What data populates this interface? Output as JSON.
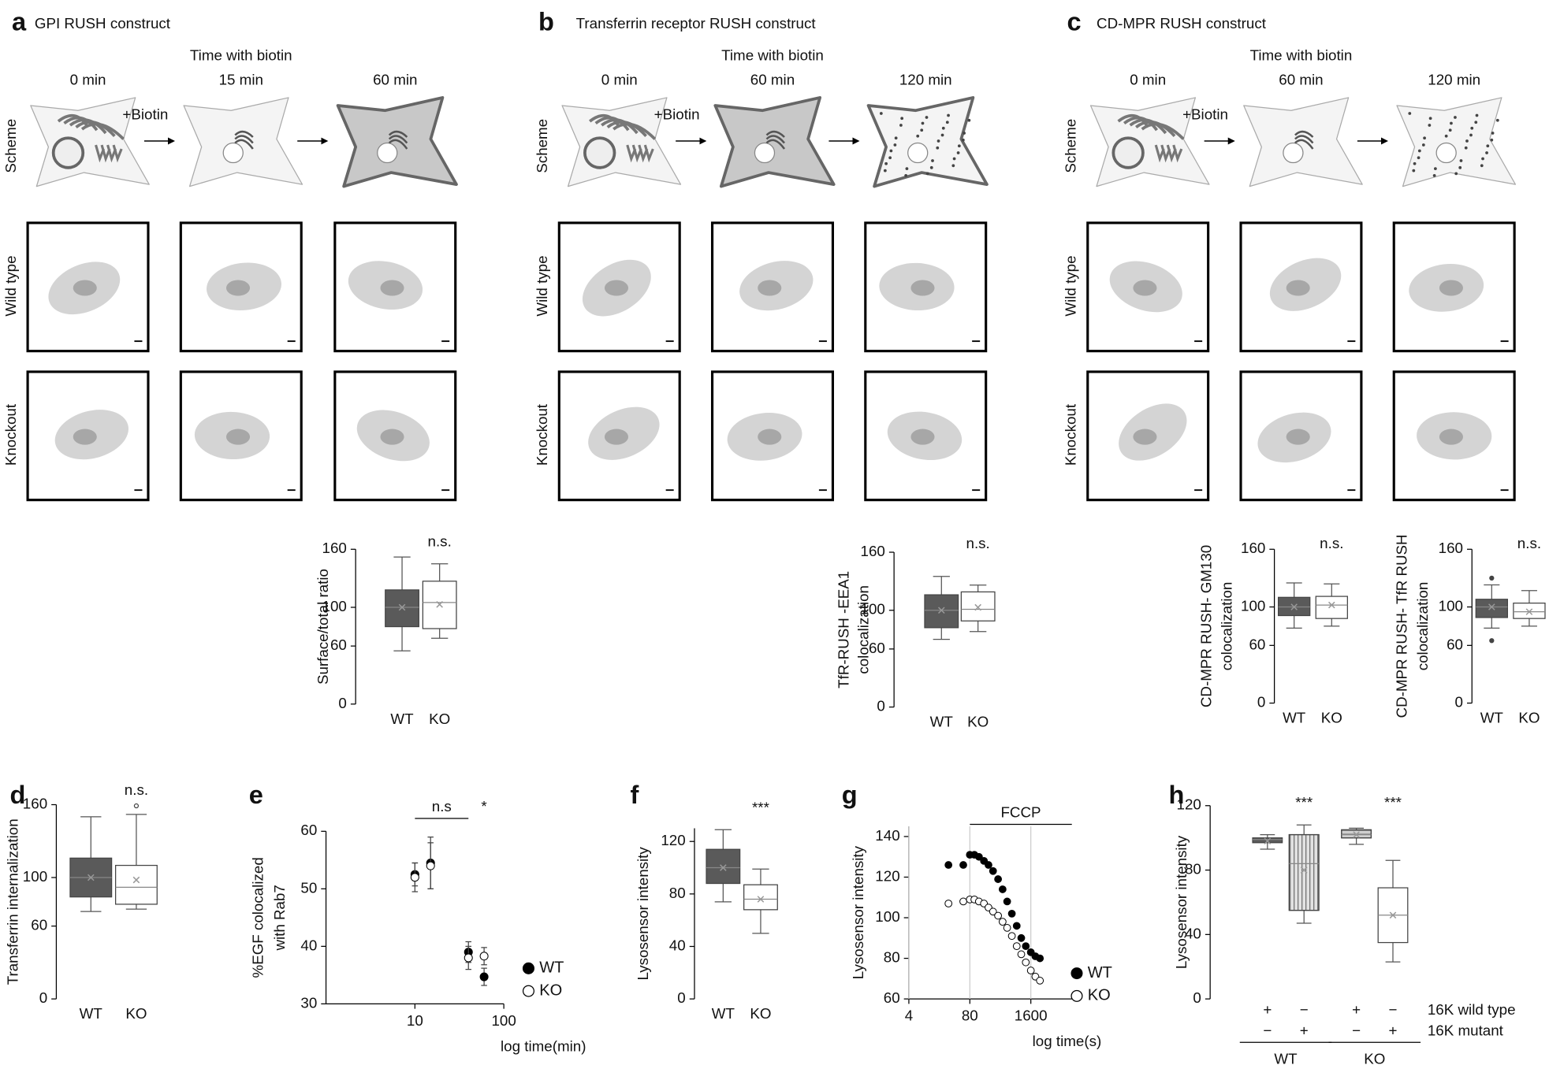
{
  "panels": [
    {
      "letter": "a",
      "title": "GPI RUSH construct",
      "time_header": "Time with biotin",
      "times": [
        "0 min",
        "15 min",
        "60 min"
      ],
      "treatment": "+Biotin",
      "row_labels": [
        "Scheme",
        "Wild type",
        "Knockout"
      ]
    },
    {
      "letter": "b",
      "title": "Transferrin receptor RUSH construct",
      "time_header": "Time with biotin",
      "times": [
        "0 min",
        "60 min",
        "120 min"
      ],
      "treatment": "+Biotin",
      "row_labels": [
        "Scheme",
        "Wild type",
        "Knockout"
      ]
    },
    {
      "letter": "c",
      "title": "CD-MPR RUSH construct",
      "time_header": "Time with biotin",
      "times": [
        "0 min",
        "60 min",
        "120 min"
      ],
      "treatment": "+Biotin",
      "row_labels": [
        "Scheme",
        "Wild type",
        "Knockout"
      ]
    }
  ],
  "chart_data": [
    {
      "type": "box",
      "ylabel": [
        "Surface/total ratio"
      ],
      "categories": [
        "WT",
        "KO"
      ],
      "ylim": [
        0,
        160
      ],
      "yticks": [
        0,
        60,
        100,
        160
      ],
      "boxes": [
        {
          "low": 55,
          "q1": 80,
          "median": 100,
          "q3": 118,
          "high": 152,
          "mean": 100,
          "fill": "#5a5a5a"
        },
        {
          "low": 68,
          "q1": 78,
          "median": 105,
          "q3": 127,
          "high": 145,
          "mean": 103,
          "fill": "#ffffff",
          "annotation": "n.s."
        }
      ]
    },
    {
      "type": "box",
      "ylabel": [
        "TfR-RUSH -EEA1",
        "colocalization"
      ],
      "categories": [
        "WT",
        "KO"
      ],
      "ylim": [
        0,
        160
      ],
      "yticks": [
        0,
        60,
        100,
        160
      ],
      "boxes": [
        {
          "low": 70,
          "q1": 82,
          "median": 100,
          "q3": 116,
          "high": 135,
          "mean": 100,
          "fill": "#5a5a5a"
        },
        {
          "low": 78,
          "q1": 89,
          "median": 101,
          "q3": 119,
          "high": 126,
          "mean": 103,
          "fill": "#ffffff",
          "annotation": "n.s."
        }
      ]
    },
    {
      "type": "box",
      "ylabel": [
        "CD-MPR RUSH- GM130",
        "colocalization"
      ],
      "categories": [
        "WT",
        "KO"
      ],
      "ylim": [
        0,
        160
      ],
      "yticks": [
        0,
        60,
        100,
        160
      ],
      "boxes": [
        {
          "low": 78,
          "q1": 91,
          "median": 100,
          "q3": 110,
          "high": 125,
          "mean": 100,
          "fill": "#5a5a5a"
        },
        {
          "low": 80,
          "q1": 88,
          "median": 102,
          "q3": 111,
          "high": 124,
          "mean": 102,
          "fill": "#ffffff",
          "annotation": "n.s."
        }
      ]
    },
    {
      "type": "box",
      "ylabel": [
        "CD-MPR RUSH- TfR RUSH",
        "colocalization"
      ],
      "categories": [
        "WT",
        "KO"
      ],
      "ylim": [
        0,
        160
      ],
      "yticks": [
        0,
        60,
        100,
        160
      ],
      "boxes": [
        {
          "low": 78,
          "q1": 89,
          "median": 100,
          "q3": 108,
          "high": 123,
          "mean": 100,
          "fill": "#5a5a5a",
          "outliers": [
            130,
            65
          ]
        },
        {
          "low": 80,
          "q1": 88,
          "median": 95,
          "q3": 104,
          "high": 117,
          "mean": 95,
          "fill": "#ffffff",
          "annotation": "n.s."
        }
      ]
    },
    {
      "type": "box",
      "label": "d",
      "ylabel": [
        "Transferrin internalization"
      ],
      "categories": [
        "WT",
        "KO"
      ],
      "ylim": [
        0,
        160
      ],
      "yticks": [
        0,
        60,
        100,
        160
      ],
      "boxes": [
        {
          "low": 72,
          "q1": 84,
          "median": 100,
          "q3": 116,
          "high": 150,
          "mean": 100,
          "fill": "#5a5a5a"
        },
        {
          "low": 74,
          "q1": 78,
          "median": 92,
          "q3": 110,
          "high": 152,
          "mean": 98,
          "fill": "#ffffff",
          "annotation": "n.s.",
          "outliers": [
            159
          ]
        }
      ]
    },
    {
      "type": "scatter",
      "label": "e",
      "xscale": "log",
      "ylabel": [
        "%EGF colocalized",
        "with Rab7"
      ],
      "xlabel": "log time(min)",
      "xlim": [
        1,
        100
      ],
      "xticks": [
        10,
        100
      ],
      "ylim": [
        30,
        60
      ],
      "yticks": [
        30,
        40,
        50,
        60
      ],
      "series": [
        {
          "name": "WT",
          "color": "#000000",
          "marker": "filled",
          "x": [
            10,
            15,
            40,
            60
          ],
          "values": [
            52.5,
            54.5,
            39,
            34.7
          ],
          "errors": [
            2,
            4.5,
            1.8,
            1.5
          ]
        },
        {
          "name": "KO",
          "color": "#000000",
          "marker": "open",
          "x": [
            10,
            15,
            40,
            60
          ],
          "values": [
            52,
            54,
            38,
            38.3
          ],
          "errors": [
            2.5,
            4,
            2,
            1.5
          ]
        }
      ],
      "annotations": [
        {
          "text": "n.s",
          "from": 10,
          "to": 40
        },
        {
          "text": "*",
          "from": 60
        }
      ]
    },
    {
      "type": "box",
      "label": "f",
      "ylabel": [
        "Lysosensor intensity"
      ],
      "categories": [
        "WT",
        "KO"
      ],
      "ylim": [
        0,
        130
      ],
      "yticks": [
        0,
        40,
        80,
        120
      ],
      "boxes": [
        {
          "low": 74,
          "q1": 88,
          "median": 100,
          "q3": 114,
          "high": 129,
          "mean": 100,
          "fill": "#5a5a5a"
        },
        {
          "low": 50,
          "q1": 68,
          "median": 76,
          "q3": 87,
          "high": 99,
          "mean": 76,
          "fill": "#ffffff",
          "annotation": "***"
        }
      ]
    },
    {
      "type": "scatter",
      "label": "g",
      "xscale": "log",
      "ylabel": [
        "Lysosensor intensity"
      ],
      "xlabel": "log time(s)",
      "grid_x": true,
      "xlim": [
        4,
        12000
      ],
      "xticks": [
        4,
        80,
        1600
      ],
      "ylim": [
        60,
        145
      ],
      "yticks": [
        60,
        80,
        100,
        120,
        140
      ],
      "series": [
        {
          "name": "WT",
          "color": "#000000",
          "marker": "filled",
          "x": [
            28,
            58,
            80,
            100,
            125,
            160,
            200,
            250,
            320,
            400,
            500,
            630,
            800,
            1000,
            1250,
            1600,
            2000,
            2500
          ],
          "values": [
            126,
            126,
            131,
            131,
            130,
            128,
            126,
            123,
            119,
            114,
            108,
            102,
            96,
            90,
            86,
            83,
            81,
            80
          ]
        },
        {
          "name": "KO",
          "color": "#000000",
          "marker": "open",
          "x": [
            28,
            58,
            80,
            100,
            125,
            160,
            200,
            250,
            320,
            400,
            500,
            630,
            800,
            1000,
            1250,
            1600,
            2000,
            2500
          ],
          "values": [
            107,
            108,
            109,
            109,
            108,
            107,
            105,
            103,
            101,
            98,
            95,
            91,
            86,
            82,
            78,
            74,
            71,
            69
          ]
        }
      ],
      "annotations": [
        {
          "text": "FCCP",
          "from": 80,
          "to": 12000
        }
      ]
    },
    {
      "type": "box",
      "label": "h",
      "ylabel": [
        "Lysosensor intensity"
      ],
      "ylim": [
        0,
        120
      ],
      "yticks": [
        0,
        40,
        80,
        120
      ],
      "boxes": [
        {
          "low": 93,
          "q1": 97,
          "median": 99,
          "q3": 100,
          "high": 102,
          "mean": 98,
          "fill": "#5a5a5a"
        },
        {
          "low": 47,
          "q1": 55,
          "median": 84,
          "q3": 102,
          "high": 108,
          "mean": 80,
          "fill": "#e2e2e2",
          "hatch": "vertical",
          "annotation": "***"
        },
        {
          "low": 96,
          "q1": 100,
          "median": 102,
          "q3": 105,
          "high": 106,
          "mean": 102,
          "fill": "#cfcfcf",
          "hatch": "horizontal"
        },
        {
          "low": 23,
          "q1": 35,
          "median": 52,
          "q3": 69,
          "high": 86,
          "mean": 52,
          "fill": "#ffffff",
          "annotation": "***"
        }
      ],
      "rows": [
        {
          "name": "16K wild type",
          "marks": [
            "+",
            "−",
            "+",
            "−"
          ]
        },
        {
          "name": "16K mutant",
          "marks": [
            "−",
            "+",
            "−",
            "+"
          ]
        }
      ],
      "groups": [
        "WT",
        "KO"
      ]
    }
  ]
}
